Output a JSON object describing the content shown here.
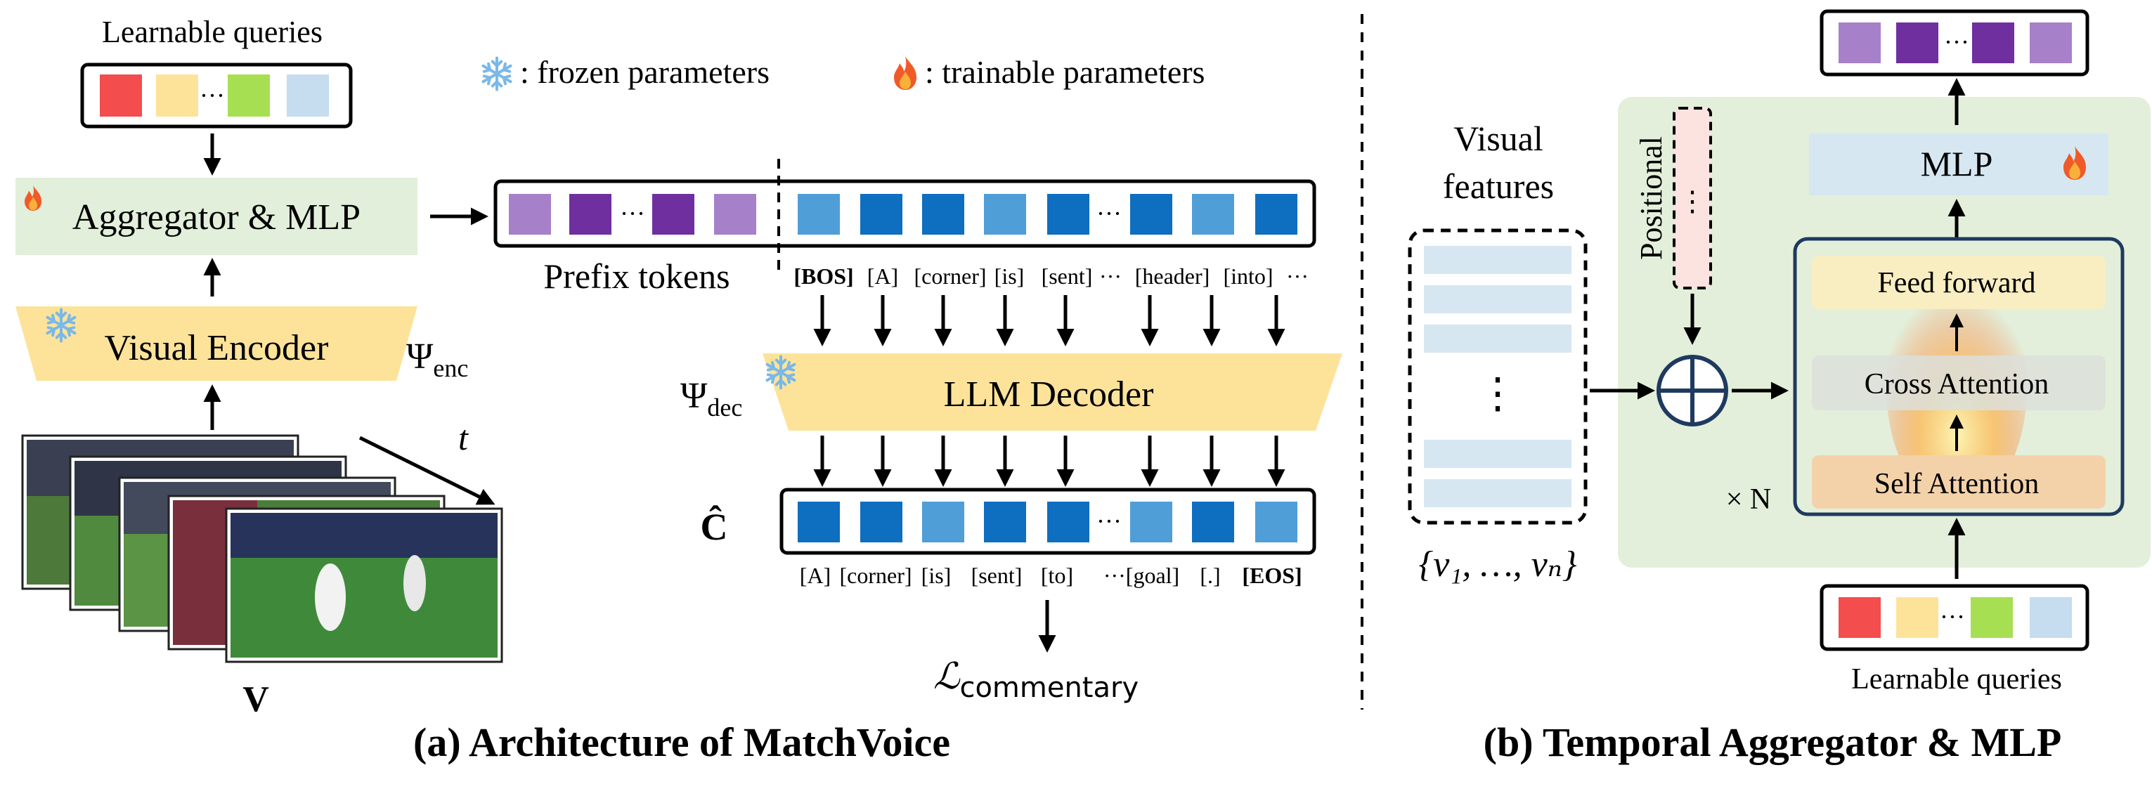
{
  "legend": {
    "frozen_icon": "snowflake-icon",
    "frozen_label": ": frozen parameters",
    "trainable_icon": "flame-icon",
    "trainable_label": ": trainable parameters"
  },
  "left": {
    "learnable_queries_label": "Learnable queries",
    "aggregator_label": "Aggregator & MLP",
    "visual_encoder_label": "Visual Encoder",
    "psi": "Ψ",
    "enc_sub": "enc",
    "dec_sub": "dec",
    "v_label": "V",
    "t_label": "t",
    "prefix_label": "Prefix tokens",
    "llm_decoder_label": "LLM Decoder",
    "c_hat_label": "Ĉ",
    "dots": "···",
    "input_tokens": [
      "[BOS]",
      "[A]",
      "[corner]",
      "[is]",
      "[sent]",
      "···",
      "[header]",
      "[into]",
      "···"
    ],
    "output_tokens": [
      "[A]",
      "[corner]",
      "[is]",
      "[sent]",
      "[to]",
      "···[goal]",
      "[.]",
      "[EOS]"
    ],
    "loss_symbol": "ℒ",
    "loss_sub": "commentary",
    "caption": "(a) Architecture of MatchVoice"
  },
  "right": {
    "visual_features_line1": "Visual",
    "visual_features_line2": "features",
    "vf_dots": "⋮",
    "set_label": "{v₁, …, vₙ}",
    "positional_label": "Positional",
    "mlp_label": "MLP",
    "feed_forward_label": "Feed forward",
    "cross_attention_label": "Cross Attention",
    "self_attention_label": "Self Attention",
    "times_n": "× N",
    "learnable_queries_label": "Learnable queries",
    "dots": "···",
    "caption": "(b) Temporal Aggregator & MLP"
  },
  "colors": {
    "query_red": "#f34d4d",
    "query_yellow": "#fde39a",
    "query_green": "#a6e052",
    "query_blue": "#c6dcef",
    "prefix_light_purple": "#a680c8",
    "prefix_dark_purple": "#6f2f9f",
    "token_dark_blue": "#0e6ec0",
    "token_light_blue": "#4f9ed8",
    "agg_bg": "#e2efda",
    "encoder_yellow": "#fde39a",
    "mlp_blue": "#d6e7f2",
    "ff_yellow": "#fbeec0",
    "cross_grey": "#dcdfdb",
    "self_orange": "#f4d2a9",
    "panel_green": "#e3efda"
  }
}
